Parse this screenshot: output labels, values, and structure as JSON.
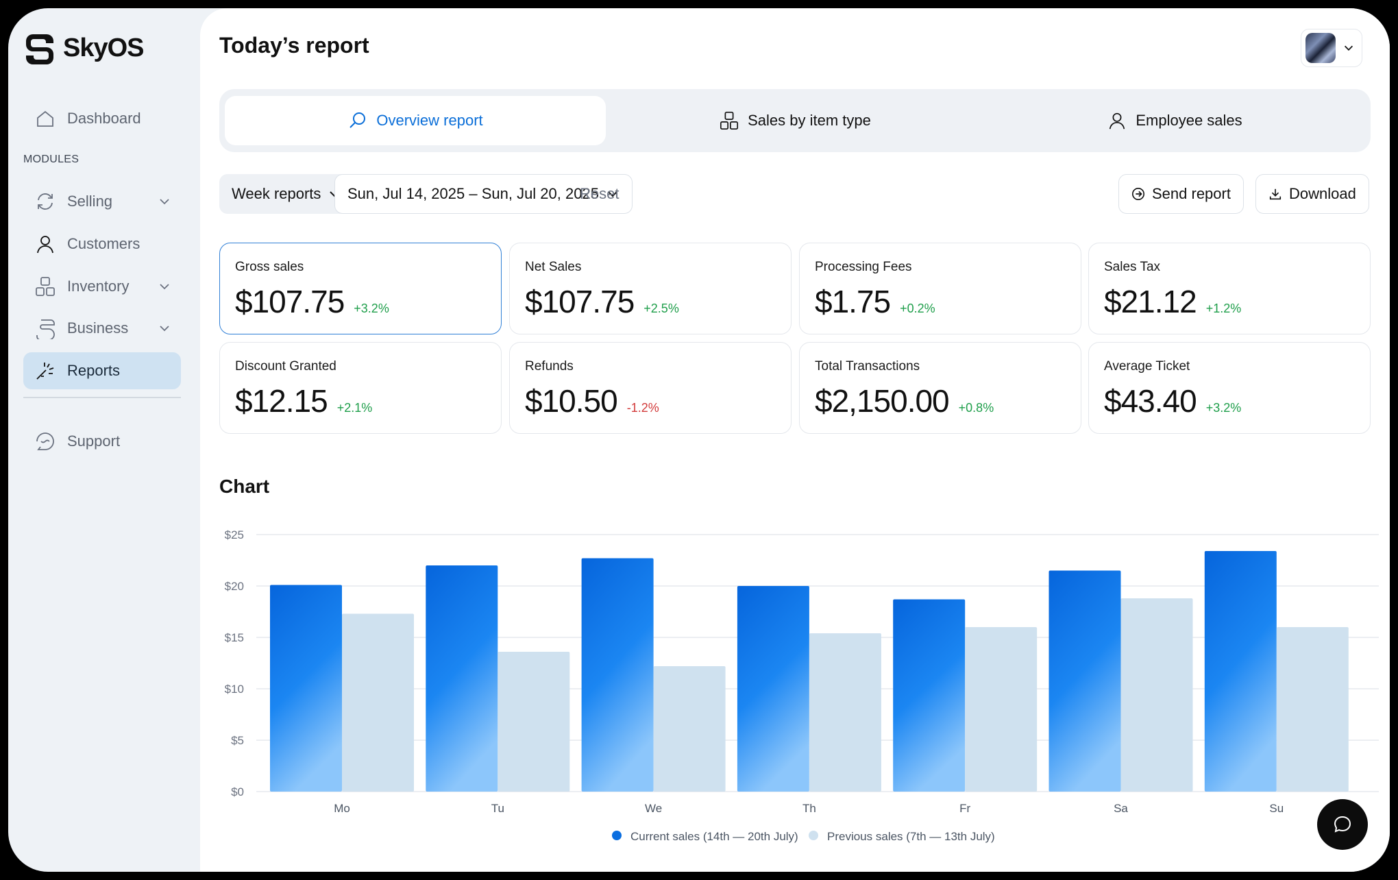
{
  "app": {
    "name": "SkyOS"
  },
  "sidebar": {
    "items": [
      {
        "label": "Dashboard",
        "icon": "home-icon"
      },
      {
        "label": "Selling",
        "icon": "refresh-icon",
        "has_submenu": true
      },
      {
        "label": "Customers",
        "icon": "user-icon"
      },
      {
        "label": "Inventory",
        "icon": "boxes-icon",
        "has_submenu": true
      },
      {
        "label": "Business",
        "icon": "business-icon",
        "has_submenu": true
      },
      {
        "label": "Reports",
        "icon": "reports-icon",
        "active": true
      },
      {
        "label": "Support",
        "icon": "support-icon"
      }
    ],
    "modules_label": "MODULES"
  },
  "header": {
    "title": "Today’s report"
  },
  "tabs": [
    {
      "label": "Overview report",
      "icon": "search-icon",
      "active": true
    },
    {
      "label": "Sales by item type",
      "icon": "boxes-icon"
    },
    {
      "label": "Employee sales",
      "icon": "user-icon"
    }
  ],
  "filters": {
    "period": "Week reports",
    "date_range": "Sun, Jul 14, 2025 – Sun, Jul 20, 2025",
    "reset": "Reset",
    "send": "Send report",
    "download": "Download"
  },
  "metrics": [
    {
      "label": "Gross sales",
      "value": "$107.75",
      "delta": "+3.2%",
      "trend": "up",
      "selected": true
    },
    {
      "label": "Net Sales",
      "value": "$107.75",
      "delta": "+2.5%",
      "trend": "up"
    },
    {
      "label": "Processing Fees",
      "value": "$1.75",
      "delta": "+0.2%",
      "trend": "up"
    },
    {
      "label": "Sales Tax",
      "value": "$21.12",
      "delta": "+1.2%",
      "trend": "up"
    },
    {
      "label": "Discount Granted",
      "value": "$12.15",
      "delta": "+2.1%",
      "trend": "up"
    },
    {
      "label": "Refunds",
      "value": "$10.50",
      "delta": "-1.2%",
      "trend": "down"
    },
    {
      "label": "Total Transactions",
      "value": "$2,150.00",
      "delta": "+0.8%",
      "trend": "up"
    },
    {
      "label": "Average Ticket",
      "value": "$43.40",
      "delta": "+3.2%",
      "trend": "up"
    }
  ],
  "chart_section": {
    "title": "Chart"
  },
  "chart_data": {
    "type": "bar",
    "categories": [
      "Mo",
      "Tu",
      "We",
      "Th",
      "Fr",
      "Sa",
      "Su"
    ],
    "series": [
      {
        "name": "Current sales (14th — 20th July)",
        "values": [
          20.1,
          22.0,
          22.7,
          20.0,
          18.7,
          21.5,
          23.4
        ],
        "color": "#0a6ee0"
      },
      {
        "name": "Previous sales (7th — 13th July)",
        "values": [
          17.3,
          13.6,
          12.2,
          15.4,
          16.0,
          18.8,
          16.0
        ],
        "color": "#cfe1ef"
      }
    ],
    "y_ticks": [
      "$0",
      "$5",
      "$10",
      "$15",
      "$20",
      "$25"
    ],
    "ylim": [
      0,
      25
    ],
    "grid": true,
    "legend_position": "bottom-center"
  },
  "colors": {
    "accent": "#0a6ed8",
    "positive": "#1e9e4a",
    "negative": "#d23a3a"
  }
}
